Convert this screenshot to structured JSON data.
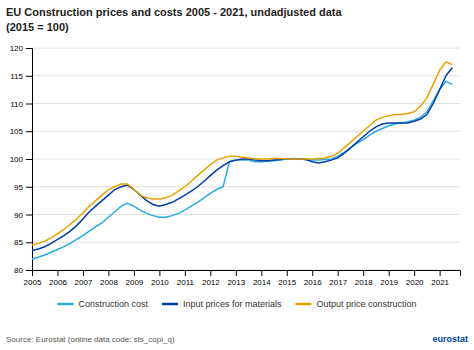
{
  "chart_data": {
    "type": "line",
    "title": "EU Construction prices and costs 2005 - 2021, undadjusted data",
    "subtitle": "(2015 = 100)",
    "annotations": [
      "Source: Eurostat (online data code: sts_copi_q)",
      "eurostat"
    ],
    "x": [
      2005.0,
      2005.25,
      2005.5,
      2005.75,
      2006.0,
      2006.25,
      2006.5,
      2006.75,
      2007.0,
      2007.25,
      2007.5,
      2007.75,
      2008.0,
      2008.25,
      2008.5,
      2008.75,
      2009.0,
      2009.25,
      2009.5,
      2009.75,
      2010.0,
      2010.25,
      2010.5,
      2010.75,
      2011.0,
      2011.25,
      2011.5,
      2011.75,
      2012.0,
      2012.25,
      2012.5,
      2012.75,
      2013.0,
      2013.25,
      2013.5,
      2013.75,
      2014.0,
      2014.25,
      2014.5,
      2014.75,
      2015.0,
      2015.25,
      2015.5,
      2015.75,
      2016.0,
      2016.25,
      2016.5,
      2016.75,
      2017.0,
      2017.25,
      2017.5,
      2017.75,
      2018.0,
      2018.25,
      2018.5,
      2018.75,
      2019.0,
      2019.25,
      2019.5,
      2019.75,
      2020.0,
      2020.25,
      2020.5,
      2020.75,
      2021.0,
      2021.25,
      2021.5
    ],
    "series": [
      {
        "name": "Construction cost",
        "color": "#29ABE2",
        "values": [
          82.0,
          82.3,
          82.7,
          83.2,
          83.7,
          84.2,
          84.8,
          85.5,
          86.2,
          87.0,
          87.8,
          88.5,
          89.5,
          90.5,
          91.5,
          92.0,
          91.5,
          90.8,
          90.2,
          89.8,
          89.5,
          89.5,
          89.8,
          90.2,
          90.8,
          91.5,
          92.2,
          93.0,
          93.8,
          94.5,
          95.0,
          99.5,
          99.8,
          99.8,
          99.8,
          99.5,
          99.5,
          99.6,
          99.7,
          99.8,
          100.0,
          100.1,
          100.0,
          99.9,
          99.8,
          99.8,
          99.9,
          100.0,
          100.5,
          101.2,
          102.0,
          102.8,
          103.5,
          104.3,
          105.0,
          105.5,
          106.0,
          106.3,
          106.5,
          106.7,
          107.0,
          107.5,
          108.5,
          110.5,
          112.5,
          114.0,
          113.5
        ]
      },
      {
        "name": "Input prices for materials",
        "color": "#003DA6",
        "values": [
          83.5,
          83.8,
          84.2,
          84.8,
          85.5,
          86.2,
          87.0,
          88.0,
          89.2,
          90.5,
          91.5,
          92.5,
          93.5,
          94.5,
          95.0,
          95.3,
          94.5,
          93.5,
          92.5,
          91.8,
          91.5,
          91.8,
          92.2,
          92.8,
          93.5,
          94.2,
          95.0,
          96.0,
          97.0,
          98.0,
          98.8,
          99.5,
          99.8,
          100.0,
          100.0,
          99.8,
          99.7,
          99.7,
          99.8,
          99.9,
          100.0,
          100.0,
          100.0,
          99.9,
          99.5,
          99.3,
          99.5,
          99.8,
          100.2,
          101.0,
          102.0,
          103.0,
          104.0,
          105.0,
          105.8,
          106.3,
          106.5,
          106.5,
          106.5,
          106.5,
          106.8,
          107.2,
          108.0,
          110.0,
          112.5,
          115.0,
          116.5
        ]
      },
      {
        "name": "Output price construction",
        "color": "#E8A000",
        "values": [
          84.5,
          84.8,
          85.2,
          85.8,
          86.5,
          87.3,
          88.2,
          89.2,
          90.3,
          91.5,
          92.5,
          93.5,
          94.5,
          95.0,
          95.5,
          95.5,
          94.5,
          93.5,
          93.0,
          92.8,
          92.8,
          93.0,
          93.5,
          94.2,
          95.0,
          96.0,
          97.0,
          98.0,
          99.0,
          99.8,
          100.2,
          100.5,
          100.5,
          100.3,
          100.2,
          100.0,
          100.0,
          100.0,
          100.1,
          100.1,
          100.0,
          100.0,
          100.0,
          100.0,
          100.0,
          100.1,
          100.2,
          100.5,
          101.0,
          102.0,
          103.0,
          104.0,
          105.0,
          106.0,
          107.0,
          107.5,
          107.8,
          108.0,
          108.0,
          108.2,
          108.5,
          109.5,
          111.0,
          113.5,
          116.0,
          117.5,
          117.0
        ]
      }
    ],
    "xlim": [
      2005,
      2021.8
    ],
    "xticks": [
      2005,
      2006,
      2007,
      2008,
      2009,
      2010,
      2011,
      2012,
      2013,
      2014,
      2015,
      2016,
      2017,
      2018,
      2019,
      2020,
      2021
    ],
    "ylim": [
      80,
      120
    ],
    "yticks": [
      80,
      85,
      90,
      95,
      100,
      105,
      110,
      115,
      120
    ],
    "grid": true,
    "legend": "bottom"
  }
}
